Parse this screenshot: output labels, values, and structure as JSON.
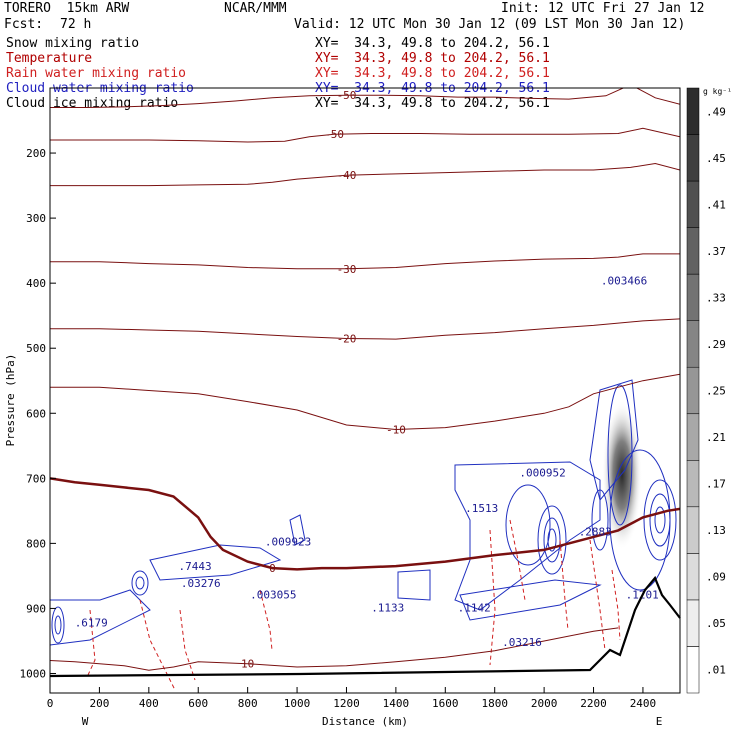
{
  "header": {
    "model": "TORERO  15km ARW",
    "center": "NCAR/MMM",
    "init": "Init: 12 UTC Fri 27 Jan 12",
    "fcst_label": "Fcst:",
    "fcst_value": "72 h",
    "valid": "Valid: 12 UTC Mon 30 Jan 12 (09 LST Mon 30 Jan 12)"
  },
  "fields": [
    {
      "name": "Snow mixing ratio",
      "xy": "XY=  34.3, 49.8 to 204.2, 56.1",
      "color": "#000000"
    },
    {
      "name": "Temperature",
      "xy": "XY=  34.3, 49.8 to 204.2, 56.1",
      "color": "#b00000"
    },
    {
      "name": "Rain water mixing ratio",
      "xy": "XY=  34.3, 49.8 to 204.2, 56.1",
      "color": "#d02020"
    },
    {
      "name": "Cloud water mixing ratio",
      "xy": "XY=  34.3, 49.8 to 204.2, 56.1",
      "color": "#2020c0"
    },
    {
      "name": "Cloud ice mixing ratio",
      "xy": "XY=  34.3, 49.8 to 204.2, 56.1",
      "color": "#000000"
    }
  ],
  "colors": {
    "temperature": "#7a1010",
    "zero_isotherm": "#7a1010",
    "rain": "#d02020",
    "cloud_water": "#2030c0",
    "terrain": "#000000"
  },
  "chart_data": {
    "type": "contour cross-section",
    "xlabel": "Distance (km)",
    "ylabel": "Pressure (hPa)",
    "x_ticks": [
      0,
      200,
      400,
      600,
      800,
      1000,
      1200,
      1400,
      1600,
      1800,
      2000,
      2200,
      2400
    ],
    "y_ticks": [
      200,
      300,
      400,
      500,
      600,
      700,
      800,
      900,
      1000
    ],
    "xlim": [
      0,
      2550
    ],
    "ylim": [
      1030,
      100
    ],
    "end_left": "W",
    "end_right": "E",
    "colorbar_unit": "g kg⁻¹",
    "colorbar_levels": [
      ".01",
      ".05",
      ".09",
      ".13",
      ".17",
      ".21",
      ".25",
      ".29",
      ".33",
      ".37",
      ".41",
      ".45",
      ".49"
    ],
    "temperature_contours": [
      {
        "label": "-50",
        "x": [
          0,
          150,
          300,
          450,
          600,
          750,
          900,
          1050,
          1200,
          1350,
          1500,
          1650,
          1800,
          1950,
          2100,
          2250,
          2350,
          2450,
          2550
        ],
        "p": [
          130,
          130,
          129,
          127,
          124,
          120,
          115,
          112,
          111,
          111,
          112,
          114,
          114,
          116,
          117,
          112,
          95,
          115,
          125
        ]
      },
      {
        "label": "-50",
        "x": [
          0,
          200,
          400,
          600,
          800,
          950,
          1050,
          1150,
          1300,
          1500,
          1700,
          1900,
          2100,
          2300,
          2400,
          2550
        ],
        "p": [
          180,
          180,
          180,
          181,
          183,
          182,
          175,
          171,
          170,
          170,
          171,
          171,
          171,
          170,
          162,
          175
        ]
      },
      {
        "label": "-40",
        "x": [
          0,
          200,
          400,
          600,
          800,
          900,
          1000,
          1200,
          1400,
          1600,
          1800,
          2000,
          2200,
          2350,
          2450,
          2550
        ],
        "p": [
          250,
          250,
          250,
          249,
          248,
          245,
          240,
          234,
          232,
          230,
          228,
          226,
          226,
          222,
          216,
          226
        ]
      },
      {
        "label": "-30",
        "x": [
          0,
          200,
          400,
          600,
          800,
          1000,
          1200,
          1400,
          1600,
          1800,
          2000,
          2200,
          2300,
          2400,
          2550
        ],
        "p": [
          367,
          367,
          370,
          372,
          376,
          378,
          378,
          376,
          370,
          366,
          363,
          362,
          360,
          355,
          355
        ]
      },
      {
        "label": "-20",
        "x": [
          0,
          200,
          400,
          600,
          800,
          1000,
          1200,
          1400,
          1600,
          1800,
          2000,
          2200,
          2400,
          2550
        ],
        "p": [
          470,
          470,
          472,
          474,
          478,
          482,
          485,
          486,
          480,
          476,
          470,
          465,
          458,
          455
        ]
      },
      {
        "label": "-10",
        "x": [
          0,
          200,
          400,
          600,
          800,
          1000,
          1200,
          1400,
          1600,
          1800,
          2000,
          2100,
          2200,
          2300,
          2400,
          2550
        ],
        "p": [
          560,
          560,
          565,
          570,
          582,
          595,
          618,
          625,
          622,
          612,
          600,
          590,
          570,
          560,
          550,
          540
        ]
      },
      {
        "label": "0",
        "x": [
          0,
          100,
          200,
          300,
          400,
          500,
          600,
          650,
          700,
          800,
          900,
          1000,
          1100,
          1200,
          1400,
          1600,
          1800,
          2000,
          2200,
          2300,
          2350,
          2400,
          2500,
          2550
        ],
        "p": [
          700,
          706,
          710,
          714,
          718,
          728,
          760,
          790,
          810,
          828,
          838,
          840,
          838,
          838,
          835,
          828,
          818,
          810,
          790,
          780,
          770,
          760,
          750,
          747
        ]
      },
      {
        "label": "10",
        "x": [
          0,
          100,
          200,
          300,
          400,
          500,
          600,
          800,
          1000,
          1200,
          1400,
          1600,
          1800,
          2000,
          2200,
          2300
        ],
        "p": [
          980,
          982,
          985,
          988,
          995,
          990,
          982,
          985,
          990,
          988,
          982,
          975,
          965,
          950,
          935,
          930
        ]
      }
    ],
    "maxima_labels": [
      {
        "text": ".003466",
        "x": 2230,
        "p": 402
      },
      {
        "text": ".000952",
        "x": 1900,
        "p": 697
      },
      {
        "text": ".1513",
        "x": 1680,
        "p": 752
      },
      {
        "text": ".009923",
        "x": 870,
        "p": 803
      },
      {
        "text": ".7443",
        "x": 520,
        "p": 841
      },
      {
        "text": ".03276",
        "x": 530,
        "p": 867
      },
      {
        "text": ".003055",
        "x": 810,
        "p": 885
      },
      {
        "text": ".1133",
        "x": 1300,
        "p": 905
      },
      {
        "text": ".1142",
        "x": 1650,
        "p": 905
      },
      {
        "text": ".6179",
        "x": 100,
        "p": 928
      },
      {
        "text": ".03216",
        "x": 1830,
        "p": 958
      },
      {
        "text": ".2883",
        "x": 2140,
        "p": 788
      },
      {
        "text": ".1201",
        "x": 2330,
        "p": 885
      }
    ]
  }
}
